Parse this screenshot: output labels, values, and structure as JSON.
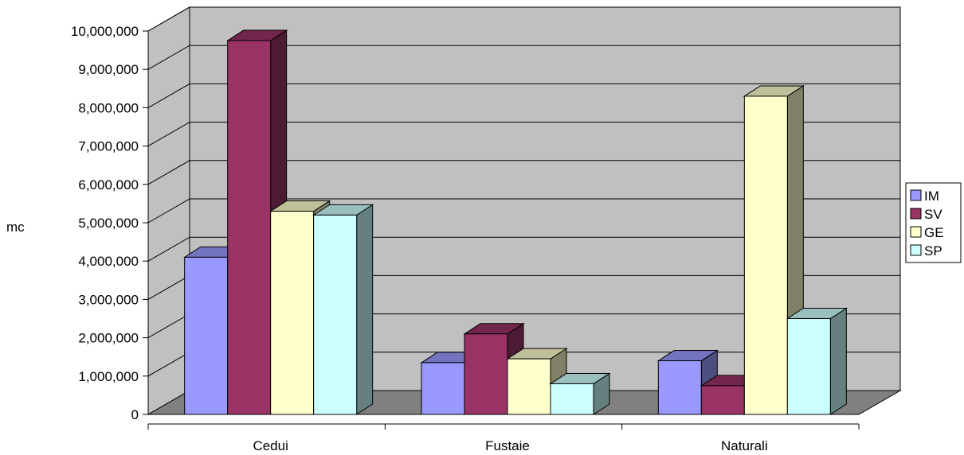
{
  "chart_data": {
    "type": "bar",
    "variant": "3d-clustered-column",
    "title": "",
    "xlabel": "",
    "ylabel": "mc",
    "ylim": [
      0,
      10000000
    ],
    "yticks": [
      0,
      1000000,
      2000000,
      3000000,
      4000000,
      5000000,
      6000000,
      7000000,
      8000000,
      9000000,
      10000000
    ],
    "ytick_labels": [
      "0",
      "1,000,000",
      "2,000,000",
      "3,000,000",
      "4,000,000",
      "5,000,000",
      "6,000,000",
      "7,000,000",
      "8,000,000",
      "9,000,000",
      "10,000,000"
    ],
    "categories": [
      "Cedui",
      "Fustaie",
      "Naturali"
    ],
    "series": [
      {
        "name": "IM",
        "values": [
          4100000,
          1350000,
          1400000
        ],
        "color": "#9999ff"
      },
      {
        "name": "SV",
        "values": [
          9750000,
          2100000,
          750000
        ],
        "color": "#993366"
      },
      {
        "name": "GE",
        "values": [
          5300000,
          1450000,
          8300000
        ],
        "color": "#ffffcc"
      },
      {
        "name": "SP",
        "values": [
          5200000,
          800000,
          2500000
        ],
        "color": "#ccffff"
      }
    ],
    "grid": true,
    "legend_position": "right",
    "colors": {
      "wall": "#c0c0c0",
      "floor": "#808080",
      "gridline": "#000000"
    }
  }
}
